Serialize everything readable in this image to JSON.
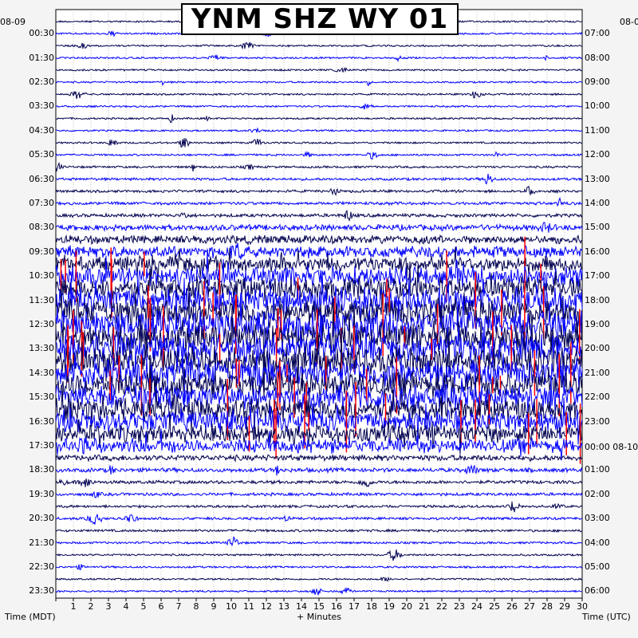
{
  "chart_data": {
    "type": "seismogram",
    "title": "YNM SHZ WY 01",
    "xlabel": "+ Minutes",
    "left_axis_label": "Time (MDT)",
    "right_axis_label": "Time (UTC)",
    "left_date": "08-09",
    "right_date_top": "08-0",
    "right_date_change": "00:00 08-10",
    "x_range": [
      0,
      30
    ],
    "x_ticks": [
      "1",
      "2",
      "3",
      "4",
      "5",
      "6",
      "7",
      "8",
      "9",
      "10",
      "11",
      "12",
      "13",
      "14",
      "15",
      "16",
      "17",
      "18",
      "19",
      "20",
      "21",
      "22",
      "23",
      "24",
      "25",
      "26",
      "27",
      "28",
      "29",
      "30"
    ],
    "left_hour_labels": [
      "00:30",
      "01:30",
      "02:30",
      "03:30",
      "04:30",
      "05:30",
      "06:30",
      "07:30",
      "08:30",
      "09:30",
      "10:30",
      "11:30",
      "12:30",
      "13:30",
      "14:30",
      "15:30",
      "16:30",
      "17:30",
      "18:30",
      "19:30",
      "20:30",
      "21:30",
      "22:30",
      "23:30"
    ],
    "right_hour_labels": [
      "07:00",
      "08:00",
      "09:00",
      "10:00",
      "11:00",
      "12:00",
      "13:00",
      "14:00",
      "15:00",
      "16:00",
      "17:00",
      "18:00",
      "19:00",
      "20:00",
      "21:00",
      "22:00",
      "23:00",
      "",
      "01:00",
      "02:00",
      "03:00",
      "04:00",
      "05:00",
      "06:00"
    ],
    "traces_per_hour": 2,
    "trace_colors": [
      "#00004f",
      "#0000ff"
    ],
    "clip_color": "#ff0000",
    "activity_per_trace": [
      0.1,
      0.1,
      0.1,
      0.1,
      0.1,
      0.1,
      0.1,
      0.1,
      0.1,
      0.1,
      0.1,
      0.12,
      0.15,
      0.2,
      0.2,
      0.25,
      0.3,
      0.6,
      0.9,
      1.3,
      1.7,
      2.2,
      2.6,
      3.0,
      3.2,
      3.3,
      3.4,
      3.4,
      3.3,
      3.2,
      3.0,
      2.8,
      2.6,
      2.4,
      2.0,
      1.6,
      0.6,
      0.4,
      0.3,
      0.25,
      0.2,
      0.2,
      0.18,
      0.15,
      0.12,
      0.12,
      0.1,
      0.1
    ]
  }
}
